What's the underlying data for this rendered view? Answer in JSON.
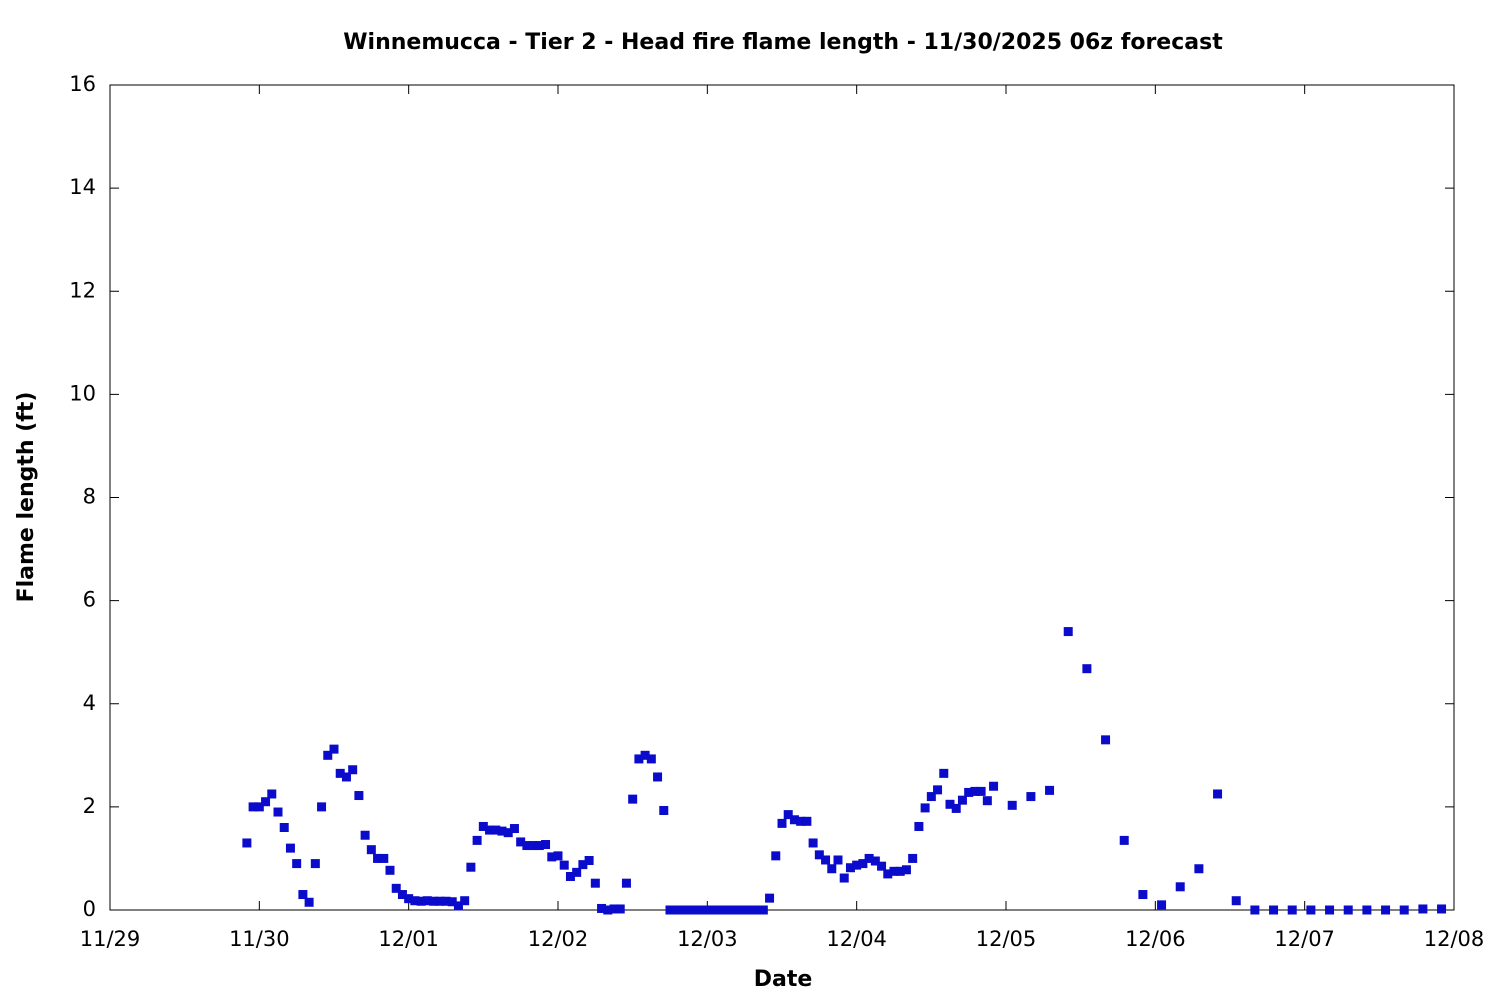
{
  "chart_data": {
    "type": "scatter",
    "title": "Winnemucca - Tier 2 - Head fire flame length - 11/30/2025 06z forecast",
    "x_label": "Date",
    "y_label": "Flame length (ft)",
    "color": "#0b0bcc",
    "xlim": [
      0,
      216
    ],
    "ylim": [
      0,
      16
    ],
    "xticks": [
      {
        "value": 0,
        "label": "11/29"
      },
      {
        "value": 24,
        "label": "11/30"
      },
      {
        "value": 48,
        "label": "12/01"
      },
      {
        "value": 72,
        "label": "12/02"
      },
      {
        "value": 96,
        "label": "12/03"
      },
      {
        "value": 120,
        "label": "12/04"
      },
      {
        "value": 144,
        "label": "12/05"
      },
      {
        "value": 168,
        "label": "12/06"
      },
      {
        "value": 192,
        "label": "12/07"
      },
      {
        "value": 216,
        "label": "12/08"
      }
    ],
    "yticks": [
      0,
      2,
      4,
      6,
      8,
      10,
      12,
      14,
      16
    ],
    "x": [
      22,
      23,
      24,
      25,
      26,
      27,
      28,
      29,
      30,
      31,
      32,
      33,
      34,
      35,
      36,
      37,
      38,
      39,
      40,
      41,
      42,
      43,
      44,
      45,
      46,
      47,
      48,
      49,
      50,
      51,
      52,
      53,
      54,
      55,
      56,
      57,
      58,
      59,
      60,
      61,
      62,
      63,
      64,
      65,
      66,
      67,
      68,
      69,
      70,
      71,
      72,
      73,
      74,
      75,
      76,
      77,
      78,
      79,
      80,
      81,
      82,
      83,
      84,
      85,
      86,
      87,
      88,
      89,
      90,
      91,
      92,
      93,
      94,
      95,
      96,
      97,
      98,
      99,
      100,
      101,
      102,
      103,
      104,
      105,
      106,
      107,
      108,
      109,
      110,
      111,
      112,
      113,
      114,
      115,
      116,
      117,
      118,
      119,
      120,
      121,
      122,
      123,
      124,
      125,
      126,
      127,
      128,
      129,
      130,
      131,
      132,
      133,
      134,
      135,
      136,
      137,
      138,
      139,
      140,
      141,
      142,
      145,
      148,
      151,
      154,
      157,
      160,
      163,
      166,
      169,
      172,
      175,
      178,
      181,
      184,
      187,
      190,
      193,
      196,
      199,
      202,
      205,
      208,
      211,
      214
    ],
    "values": [
      1.3,
      2.0,
      2.0,
      2.1,
      2.25,
      1.9,
      1.6,
      1.2,
      0.9,
      0.3,
      0.15,
      0.9,
      2.0,
      3.0,
      3.12,
      2.65,
      2.58,
      2.72,
      2.22,
      1.45,
      1.17,
      1.0,
      1.0,
      0.77,
      0.42,
      0.3,
      0.22,
      0.18,
      0.17,
      0.18,
      0.17,
      0.17,
      0.17,
      0.16,
      0.08,
      0.18,
      0.83,
      1.35,
      1.62,
      1.55,
      1.55,
      1.53,
      1.5,
      1.58,
      1.32,
      1.25,
      1.25,
      1.25,
      1.27,
      1.03,
      1.05,
      0.87,
      0.65,
      0.73,
      0.88,
      0.96,
      0.52,
      0.03,
      0,
      0.02,
      0.02,
      0.52,
      2.15,
      2.93,
      3.0,
      2.93,
      2.58,
      1.93,
      0,
      0,
      0,
      0,
      0,
      0,
      0,
      0,
      0,
      0,
      0,
      0,
      0,
      0,
      0,
      0,
      0.23,
      1.05,
      1.68,
      1.85,
      1.75,
      1.72,
      1.72,
      1.3,
      1.07,
      0.97,
      0.8,
      0.97,
      0.62,
      0.82,
      0.87,
      0.9,
      1.0,
      0.95,
      0.85,
      0.7,
      0.75,
      0.75,
      0.78,
      1.0,
      1.62,
      1.98,
      2.2,
      2.33,
      2.65,
      2.05,
      1.97,
      2.13,
      2.28,
      2.3,
      2.3,
      2.12,
      2.4,
      2.03,
      2.2,
      2.32,
      5.4,
      4.68,
      3.3,
      1.35,
      0.3,
      0.1,
      0.45,
      0.8,
      2.25,
      0.18,
      0,
      0,
      0,
      0,
      0,
      0,
      0,
      0,
      0,
      0.02,
      0.02
    ]
  }
}
